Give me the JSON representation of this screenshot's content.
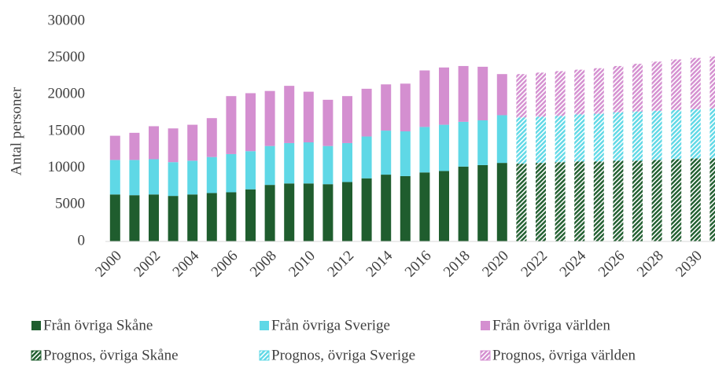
{
  "chart_data": {
    "type": "stacked_bar",
    "y_label": "Antal personer",
    "categories": [
      "2000",
      null,
      "2002",
      null,
      "2004",
      null,
      "2006",
      null,
      "2008",
      null,
      "2010",
      null,
      "2012",
      null,
      "2014",
      null,
      "2016",
      null,
      "2018",
      null,
      "2020",
      null,
      "2022",
      null,
      "2024",
      null,
      "2026",
      null,
      "2028",
      null,
      "2030",
      null
    ],
    "ylim": [
      0,
      30000
    ],
    "yticks": [
      0,
      5000,
      10000,
      15000,
      20000,
      25000,
      30000
    ],
    "grid": false,
    "series": [
      {
        "name": "Från övriga Skåne",
        "color": "#1f5d2e",
        "pattern": "solid",
        "values": [
          6400,
          6300,
          6400,
          6200,
          6400,
          6600,
          6700,
          7100,
          7700,
          7900,
          7900,
          7800,
          8100,
          8600,
          9100,
          8900,
          9400,
          9600,
          10200,
          10400,
          10700,
          null,
          null,
          null,
          null,
          null,
          null,
          null,
          null,
          null,
          null,
          null
        ]
      },
      {
        "name": "Från övriga Sverige",
        "color": "#5fd8e6",
        "pattern": "solid",
        "values": [
          4700,
          4800,
          4800,
          4600,
          4600,
          4900,
          5200,
          5200,
          5300,
          5500,
          5600,
          5200,
          5300,
          5700,
          6000,
          6100,
          6200,
          6300,
          6100,
          6100,
          6500,
          null,
          null,
          null,
          null,
          null,
          null,
          null,
          null,
          null,
          null,
          null
        ]
      },
      {
        "name": "Från övriga världen",
        "color": "#d48fd0",
        "pattern": "solid",
        "values": [
          3300,
          3700,
          4500,
          4600,
          4900,
          5300,
          7900,
          7900,
          7500,
          7800,
          6900,
          6300,
          6400,
          6500,
          6300,
          6500,
          7700,
          7800,
          7600,
          7300,
          5600,
          null,
          null,
          null,
          null,
          null,
          null,
          null,
          null,
          null,
          null,
          null
        ]
      },
      {
        "name": "Prognos, övriga Skåne",
        "color": "#1f5d2e",
        "pattern": "hatch",
        "values": [
          null,
          null,
          null,
          null,
          null,
          null,
          null,
          null,
          null,
          null,
          null,
          null,
          null,
          null,
          null,
          null,
          null,
          null,
          null,
          null,
          null,
          10600,
          10700,
          10800,
          10900,
          10900,
          11000,
          11000,
          11100,
          11200,
          11300,
          11300
        ]
      },
      {
        "name": "Prognos, övriga Sverige",
        "color": "#5fd8e6",
        "pattern": "hatch",
        "values": [
          null,
          null,
          null,
          null,
          null,
          null,
          null,
          null,
          null,
          null,
          null,
          null,
          null,
          null,
          null,
          null,
          null,
          null,
          null,
          null,
          null,
          6300,
          6300,
          6300,
          6400,
          6500,
          6600,
          6700,
          6700,
          6700,
          6700,
          6800
        ]
      },
      {
        "name": "Prognos, övriga världen",
        "color": "#d48fd0",
        "pattern": "hatch",
        "values": [
          null,
          null,
          null,
          null,
          null,
          null,
          null,
          null,
          null,
          null,
          null,
          null,
          null,
          null,
          null,
          null,
          null,
          null,
          null,
          null,
          null,
          5900,
          6000,
          6100,
          6100,
          6200,
          6300,
          6500,
          6700,
          6900,
          7000,
          7100
        ]
      }
    ]
  }
}
